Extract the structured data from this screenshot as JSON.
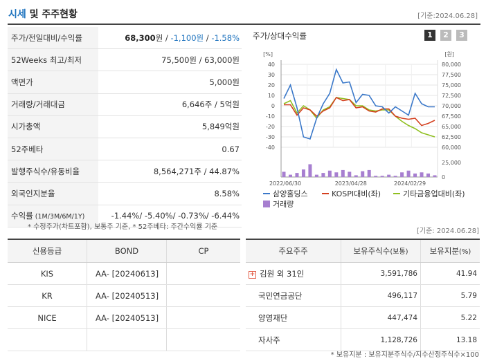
{
  "header": {
    "title_accent": "시세",
    "title_rest": " 및 주주현황",
    "date": "[기준:2024.06.28]"
  },
  "quote_table": {
    "price_row": {
      "label": "주가/전일대비/수익률",
      "price": "68,300",
      "price_unit": "원",
      "sep1": " / ",
      "change": "-1,100원",
      "sep2": " / ",
      "rate": "-1.58%"
    },
    "rows": [
      {
        "label": "52Weeks 최고/최저",
        "value": "75,500원 / 63,000원"
      },
      {
        "label": "액면가",
        "value": "5,000원"
      },
      {
        "label": "거래량/거래대금",
        "value": "6,646주 / 5억원"
      },
      {
        "label": "시가총액",
        "value": "5,849억원"
      },
      {
        "label": "52주베타",
        "value": "0.67"
      },
      {
        "label": "발행주식수/유동비율",
        "value": "8,564,271주 / 44.87%"
      },
      {
        "label": "외국인지분율",
        "value": "8.58%"
      }
    ],
    "return_row": {
      "label": "수익률",
      "label_suffix": " (1M/3M/6M/1Y)",
      "value": "-1.44%/ -5.40%/ -0.73%/ -6.44%"
    }
  },
  "note1": "* 수정주가(차트포함), 보통주 기준, * 52주베타: 주간수익률 기준",
  "date2": "[기준: 2024.06.28]",
  "chart_panel": {
    "title": "주가/상대수익률",
    "pages": [
      "1",
      "2",
      "3"
    ],
    "active_page": "1",
    "colors": {
      "active_page": "#333333",
      "inactive_page": "#bbbbbb"
    }
  },
  "chart_data": {
    "type": "line",
    "left_unit": "[%]",
    "right_unit": "[원]",
    "left_ticks": [
      "40",
      "30",
      "20",
      "10",
      "0",
      "-10",
      "-20",
      "-30",
      "-40"
    ],
    "right_ticks": [
      "80,000",
      "77,500",
      "75,000",
      "72,500",
      "70,000",
      "67,500",
      "65,000",
      "62,500",
      "60,000"
    ],
    "volume_ticks": [
      "25,000",
      "0"
    ],
    "x_ticks": [
      "2022/06/30",
      "2023/04/28",
      "2024/02/29"
    ],
    "ylim_left": [
      -40,
      40
    ],
    "ylim_right": [
      60000,
      80000
    ],
    "ylim_volume": [
      0,
      25000
    ],
    "grid": true,
    "series": [
      {
        "name": "삼양홀딩스",
        "color": "#3a78c9",
        "values": [
          7,
          20,
          -2,
          -30,
          -32,
          -12,
          2,
          12,
          35,
          22,
          23,
          3,
          11,
          10,
          0,
          -1,
          -7,
          -1,
          -5,
          -9,
          12,
          2,
          -1,
          -1
        ]
      },
      {
        "name": "KOSPI대비(좌)",
        "color": "#d4401f",
        "values": [
          1,
          1,
          -9,
          -2,
          -4,
          -10,
          -5,
          -2,
          8,
          5,
          6,
          -2,
          -1,
          -5,
          -6,
          -3,
          -3,
          -10,
          -12,
          -13,
          -12,
          -19,
          -17,
          -14
        ]
      },
      {
        "name": "기타금융업대비(좌)",
        "color": "#8fbf1f",
        "values": [
          2,
          5,
          -7,
          0,
          -4,
          -12,
          -4,
          -1,
          8,
          7,
          6,
          0,
          0,
          -4,
          -5,
          -4,
          -4,
          -10,
          -15,
          -19,
          -22,
          -26,
          -28,
          -30
        ]
      }
    ],
    "volume": {
      "name": "거래량",
      "color": "#a77fd0",
      "values": [
        9000,
        4000,
        7000,
        13000,
        22000,
        4000,
        7000,
        11000,
        8000,
        12000,
        9000,
        3000,
        10000,
        12000,
        2000,
        2000,
        4000,
        2000,
        8000,
        11000,
        6000,
        8000,
        6000,
        3000
      ]
    }
  },
  "credit_table": {
    "headers": [
      "신용등급",
      "BOND",
      "CP"
    ],
    "rows": [
      {
        "agency": "KIS",
        "bond": "AA-  [20240613]",
        "cp": ""
      },
      {
        "agency": "KR",
        "bond": "AA-  [20240513]",
        "cp": ""
      },
      {
        "agency": "NICE",
        "bond": "AA-  [20240513]",
        "cp": ""
      },
      {
        "agency": "",
        "bond": "",
        "cp": ""
      }
    ]
  },
  "holder_table": {
    "headers": [
      "주요주주",
      "보유주식수",
      "(보통)",
      "보유지분",
      "(%)"
    ],
    "rows": [
      {
        "name": "김원 외 31인",
        "shares": "3,591,786",
        "pct": "41.94",
        "expandable": true
      },
      {
        "name": "국민연금공단",
        "shares": "496,117",
        "pct": "5.79",
        "expandable": false
      },
      {
        "name": "양영재단",
        "shares": "447,474",
        "pct": "5.22",
        "expandable": false
      },
      {
        "name": "자사주",
        "shares": "1,128,726",
        "pct": "13.18",
        "expandable": false
      }
    ],
    "expand_symbol": "+"
  },
  "note2": "* 보유지분 : 보유지분주식수/지수산정주식수×100"
}
